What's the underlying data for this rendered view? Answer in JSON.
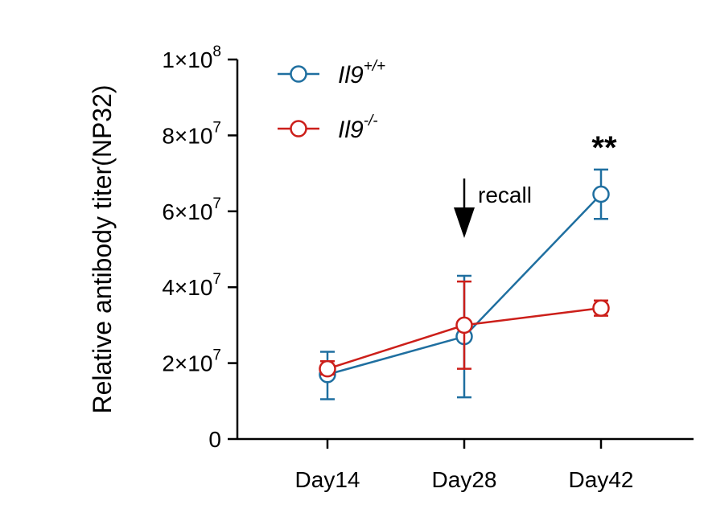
{
  "chart_data": {
    "type": "line",
    "ylabel": "Relative antibody titer(NP32)",
    "xlabel": "",
    "categories": [
      "Day14",
      "Day28",
      "Day42"
    ],
    "ylim": [
      0,
      100000000
    ],
    "yticks": [
      {
        "value": 0,
        "label": "0",
        "exp": ""
      },
      {
        "value": 20000000,
        "label": "2×10",
        "exp": "7"
      },
      {
        "value": 40000000,
        "label": "4×10",
        "exp": "7"
      },
      {
        "value": 60000000,
        "label": "6×10",
        "exp": "7"
      },
      {
        "value": 80000000,
        "label": "8×10",
        "exp": "7"
      },
      {
        "value": 100000000,
        "label": "1×10",
        "exp": "8"
      }
    ],
    "series": [
      {
        "name": "Il9",
        "name_sup": "+/+",
        "color": "#1f6fa0",
        "values": [
          17000000,
          27000000,
          64500000
        ],
        "err_low": [
          10500000,
          11000000,
          58000000
        ],
        "err_high": [
          23000000,
          43000000,
          71000000
        ]
      },
      {
        "name": "Il9",
        "name_sup": "-/-",
        "color": "#cc1f1a",
        "values": [
          18500000,
          30000000,
          34500000
        ],
        "err_low": [
          17000000,
          18500000,
          32500000
        ],
        "err_high": [
          20500000,
          41500000,
          36500000
        ]
      }
    ],
    "legend_position": "top-left",
    "annotations": [
      {
        "text": "recall",
        "category": "Day28",
        "type": "arrow-down"
      },
      {
        "text": "**",
        "category": "Day42",
        "type": "significance"
      }
    ],
    "grid": false
  }
}
